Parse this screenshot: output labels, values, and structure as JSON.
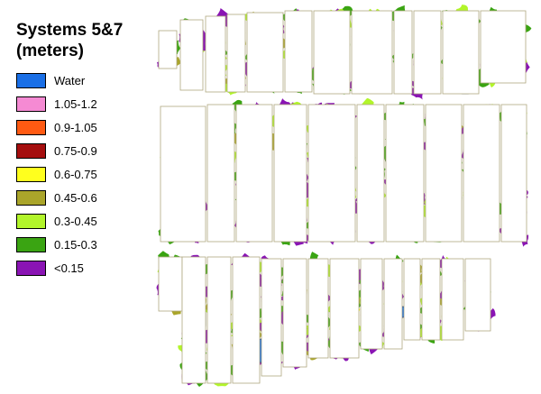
{
  "legend": {
    "title_line1": "Systems 5&7",
    "title_line2": "(meters)",
    "items": [
      {
        "label": "Water",
        "color": "#1a6fe6"
      },
      {
        "label": "1.05-1.2",
        "color": "#f58ad3"
      },
      {
        "label": "0.9-1.05",
        "color": "#ff5a12"
      },
      {
        "label": "0.75-0.9",
        "color": "#a50e0e"
      },
      {
        "label": "0.6-0.75",
        "color": "#ffff1e"
      },
      {
        "label": "0.45-0.6",
        "color": "#aaa52a"
      },
      {
        "label": "0.3-0.45",
        "color": "#b2f52a"
      },
      {
        "label": "0.15-0.3",
        "color": "#3aa412"
      },
      {
        "label": "<0.15",
        "color": "#8a14b4"
      }
    ]
  }
}
